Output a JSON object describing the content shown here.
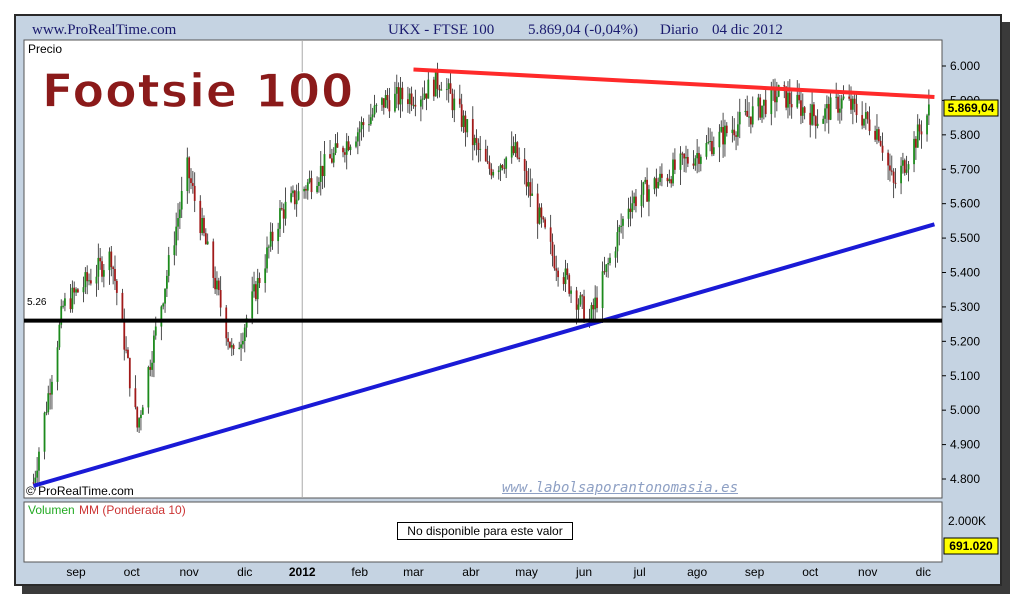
{
  "header": {
    "site": "www.ProRealTime.com",
    "instrument": "UKX - FTSE 100",
    "quote": "5.869,04 (-0,04%)",
    "period": "Diario",
    "date": "04 dic 2012"
  },
  "price_panel": {
    "label": "Precio",
    "big_title": "Footsie 100",
    "copyright": "© ProRealTime.com",
    "watermark": "www.labolsaporantonomasia.es",
    "level_label": "5.26",
    "last_price_label": "5.869,04"
  },
  "volume_panel": {
    "label_volumen": "Volumen",
    "label_mm": "MM (Ponderada 10)",
    "not_available": "No disponible para este valor",
    "axis_label": "2.000K",
    "value_label": "691.020"
  },
  "colors": {
    "resistance": "#ff2a2a",
    "support": "#1a1ad6",
    "horizontal": "#000000",
    "bull": "#1c8a1c",
    "bear": "#a11a1a",
    "title": "#8b1a1a"
  },
  "chart_data": {
    "type": "line",
    "y_axis": {
      "ticks": [
        "6.000",
        "5.900",
        "5.800",
        "5.700",
        "5.600",
        "5.500",
        "5.400",
        "5.300",
        "5.200",
        "5.100",
        "5.000",
        "4.900",
        "4.800"
      ],
      "ylim": [
        4750,
        6050
      ]
    },
    "x_axis": {
      "ticks": [
        "sep",
        "oct",
        "nov",
        "dic",
        "2012",
        "feb",
        "mar",
        "abr",
        "may",
        "jun",
        "jul",
        "ago",
        "sep",
        "oct",
        "nov",
        "dic"
      ]
    },
    "close_path": {
      "x": [
        "2011-08-09",
        "2011-08-25",
        "2011-09-20",
        "2011-10-04",
        "2011-10-31",
        "2011-11-25",
        "2011-12-20",
        "2012-01-20",
        "2012-02-15",
        "2012-03-05",
        "2012-03-16",
        "2012-04-10",
        "2012-04-25",
        "2012-05-15",
        "2012-06-04",
        "2012-06-25",
        "2012-07-20",
        "2012-08-15",
        "2012-09-14",
        "2012-10-05",
        "2012-10-19",
        "2012-11-07",
        "2012-11-15",
        "2012-12-04"
      ],
      "y": [
        4790,
        5300,
        5450,
        4950,
        5700,
        5150,
        5570,
        5750,
        5900,
        5920,
        5960,
        5700,
        5750,
        5450,
        5260,
        5600,
        5700,
        5800,
        5920,
        5850,
        5900,
        5810,
        5650,
        5869
      ]
    },
    "resistance_line": {
      "from": [
        "2012-03-01",
        5990
      ],
      "to": [
        "2012-12-07",
        5910
      ]
    },
    "support_line": {
      "from": [
        "2011-08-09",
        4780
      ],
      "to": [
        "2012-12-07",
        5540
      ]
    },
    "horizontal_line": {
      "y": 5260
    },
    "last_price": 5869.04
  }
}
